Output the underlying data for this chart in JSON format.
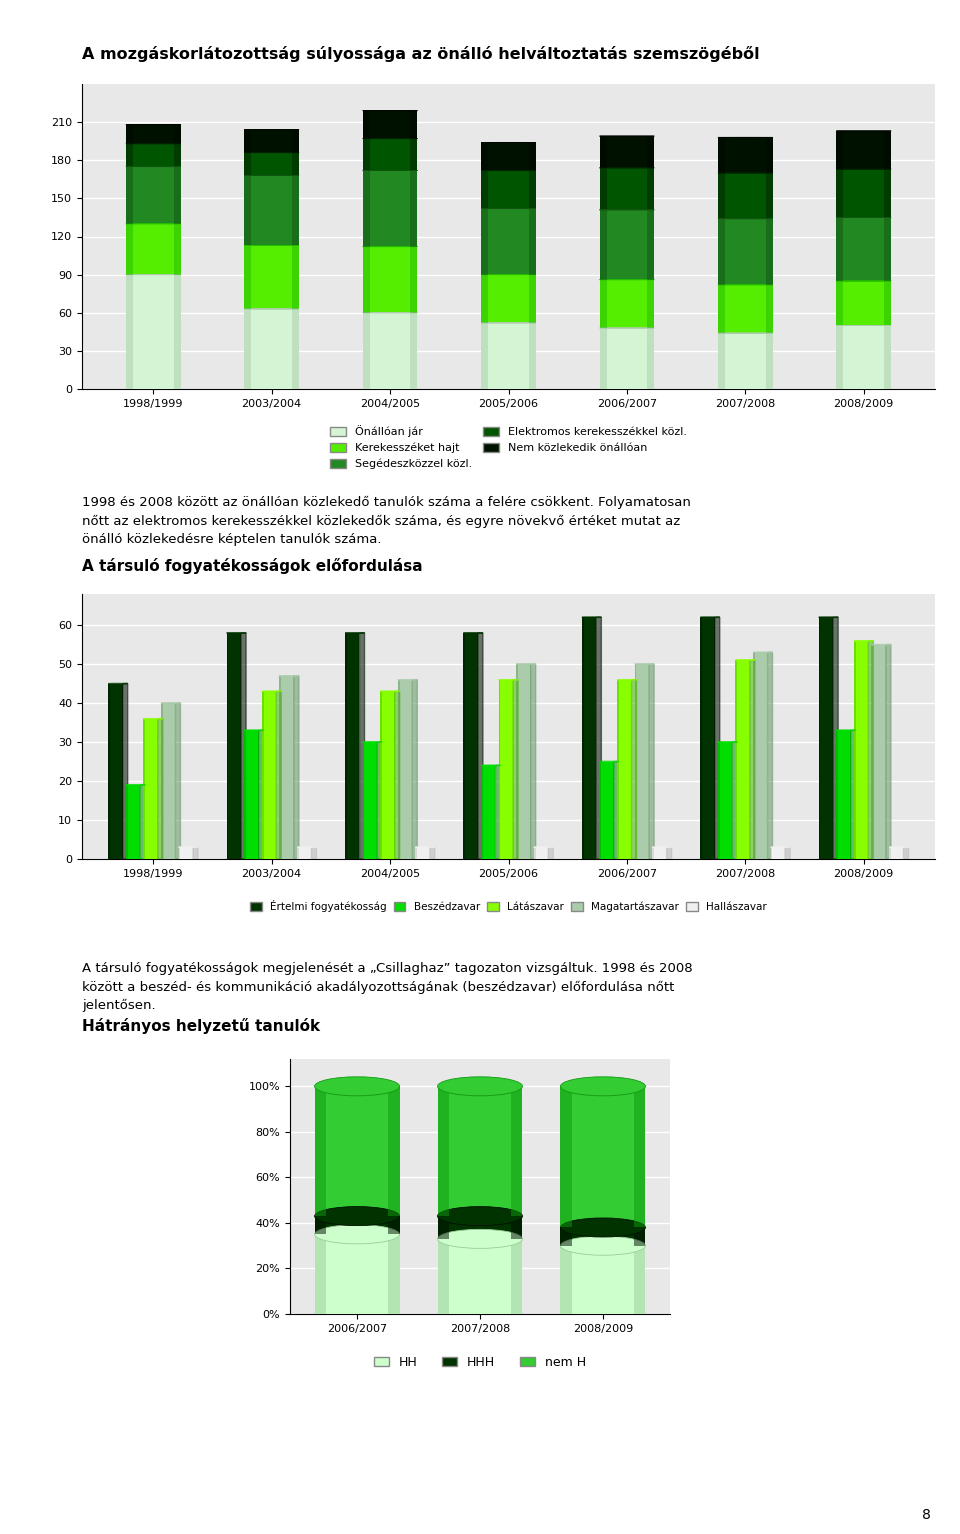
{
  "title1": "A mozgáskorlátozottság súlyossága az önálló helváltoztatás szemszögéből",
  "chart1_categories": [
    "1998/1999",
    "2003/2004",
    "2004/2005",
    "2005/2006",
    "2006/2007",
    "2007/2008",
    "2008/2009"
  ],
  "chart1_keys": [
    "Önállóan jár",
    "Kerekesszéket hajt",
    "Segédeszközzel közl.",
    "Elektromos kerekesszékkel közl.",
    "Nem közlekedik önállóan"
  ],
  "chart1_values": [
    [
      90,
      63,
      60,
      52,
      48,
      44,
      50
    ],
    [
      40,
      50,
      52,
      38,
      38,
      38,
      35
    ],
    [
      45,
      55,
      60,
      52,
      55,
      52,
      50
    ],
    [
      18,
      18,
      25,
      30,
      33,
      36,
      38
    ],
    [
      15,
      18,
      22,
      22,
      25,
      28,
      30
    ]
  ],
  "chart1_colors": [
    "#d4f5d4",
    "#55ee00",
    "#228822",
    "#005500",
    "#001100"
  ],
  "chart1_darks": [
    "#aaccaa",
    "#22bb00",
    "#115511",
    "#002200",
    "#000800"
  ],
  "chart1_yticks": [
    0,
    30,
    60,
    90,
    120,
    150,
    180,
    210
  ],
  "chart1_ylim": 240,
  "text1_line1": "1998 és 2008 között az önállóan közlekedő tanulók száma a felére csökkent. Folyamatosan",
  "text1_line2": "nőtt az elektromos kerekesszékkel közlekedők száma, és egyre növekvő értéket mutat az",
  "text1_line3": "önálló közlekedésre képtelen tanulók száma.",
  "title2": "A társuló fogyatékosságok előfordulása",
  "chart2_categories": [
    "1998/1999",
    "2003/2004",
    "2004/2005",
    "2005/2006",
    "2006/2007",
    "2007/2008",
    "2008/2009"
  ],
  "chart2_keys": [
    "Értelmi fogyatékosság",
    "Beszédzavar",
    "Látászavar",
    "Magatartászavar",
    "Hallászavar"
  ],
  "chart2_values": [
    [
      45,
      58,
      58,
      58,
      62,
      62,
      62
    ],
    [
      19,
      33,
      30,
      24,
      25,
      30,
      33
    ],
    [
      36,
      43,
      43,
      46,
      46,
      51,
      56
    ],
    [
      40,
      47,
      46,
      50,
      50,
      53,
      55
    ],
    [
      3,
      3,
      3,
      3,
      3,
      3,
      3
    ]
  ],
  "chart2_colors": [
    "#003300",
    "#00dd00",
    "#88ff00",
    "#aaccaa",
    "#f0f0f0"
  ],
  "chart2_darks": [
    "#001100",
    "#009900",
    "#44bb00",
    "#669966",
    "#bbbbbb"
  ],
  "chart2_yticks": [
    0,
    10,
    20,
    30,
    40,
    50,
    60
  ],
  "chart2_ylim": 68,
  "text2_line1": "A társuló fogyatékosságok megjelenését a „Csillaghaz” tagozaton vizsgáltuk. 1998 és 2008",
  "text2_line2": "között a beszéd- és kommunikáció akadályozottságának (beszédzavar) előfordulása nőtt",
  "text2_line3": "jelentősen.",
  "title3": "Hátrányos helyzetű tanulók",
  "chart3_categories": [
    "2006/2007",
    "2007/2008",
    "2008/2009"
  ],
  "chart3_keys": [
    "HH",
    "HHH",
    "nem H"
  ],
  "chart3_values": [
    [
      35,
      33,
      30
    ],
    [
      8,
      10,
      8
    ],
    [
      57,
      57,
      62
    ]
  ],
  "chart3_colors": [
    "#ccffcc",
    "#003300",
    "#33cc33"
  ],
  "chart3_darks": [
    "#99cc99",
    "#001100",
    "#119911"
  ],
  "page_num": "8"
}
